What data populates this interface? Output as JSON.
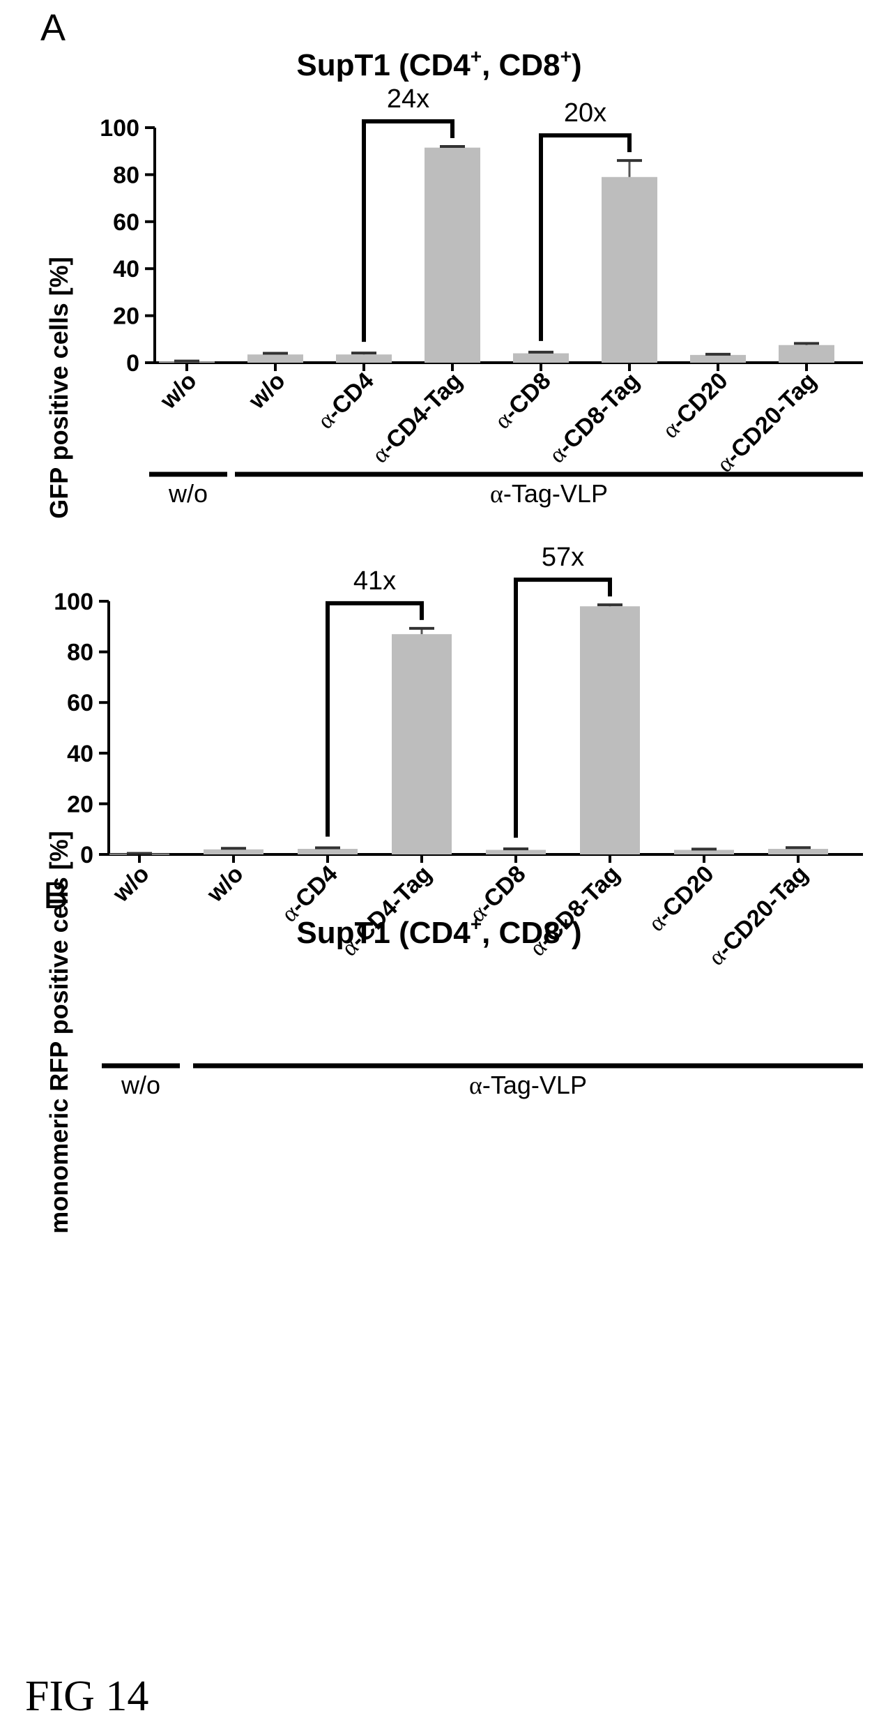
{
  "figure_label": "FIG 14",
  "chart_data": [
    {
      "type": "bar",
      "panel_label": "A",
      "title": "SupT1 (CD4",
      "title_sup1": "+",
      "title_mid": ", CD8",
      "title_sup2": "+",
      "title_end": ")",
      "ylabel": "GFP positive cells [%]",
      "xlabel": "",
      "ylim": [
        0,
        100
      ],
      "yticks": [
        0,
        20,
        40,
        60,
        80,
        100
      ],
      "categories": [
        "w/o",
        "w/o",
        "α-CD4",
        "α-CD4-Tag",
        "α-CD8",
        "α-CD8-Tag",
        "α-CD20",
        "α-CD20-Tag"
      ],
      "values": [
        0.5,
        3.5,
        3.5,
        91.5,
        4,
        79,
        3.3,
        7.5
      ],
      "errors": [
        0.2,
        0.5,
        0.6,
        0.5,
        0.5,
        7,
        0.3,
        0.7
      ],
      "bar_color": "#bdbdbd",
      "brackets": [
        {
          "from": 2,
          "to": 3,
          "label": "24x"
        },
        {
          "from": 4,
          "to": 5,
          "label": "20x"
        }
      ],
      "groups": [
        {
          "label": "w/o",
          "start": 0,
          "end": 0
        },
        {
          "label": "α-Tag-VLP",
          "start": 1,
          "end": 7
        }
      ]
    },
    {
      "type": "bar",
      "panel_label": "B",
      "title": "SupT1 (CD4",
      "title_sup1": "+",
      "title_mid": ", CD8",
      "title_sup2": "+",
      "title_end": ")",
      "ylabel": "monomeric RFP positive cells [%]",
      "xlabel": "",
      "ylim": [
        0,
        100
      ],
      "yticks": [
        0,
        20,
        40,
        60,
        80,
        100
      ],
      "categories": [
        "w/o",
        "w/o",
        "α-CD4",
        "α-CD4-Tag",
        "α-CD8",
        "α-CD8-Tag",
        "α-CD20",
        "α-CD20-Tag"
      ],
      "values": [
        0.3,
        2,
        2.2,
        87,
        1.8,
        98,
        1.8,
        2.2
      ],
      "errors": [
        0.1,
        0.4,
        0.4,
        2.3,
        0.4,
        0.6,
        0.3,
        0.5
      ],
      "bar_color": "#bdbdbd",
      "brackets": [
        {
          "from": 2,
          "to": 3,
          "label": "41x"
        },
        {
          "from": 4,
          "to": 5,
          "label": "57x"
        }
      ],
      "groups": [
        {
          "label": "w/o",
          "start": 0,
          "end": 0
        },
        {
          "label": "α-Tag-VLP",
          "start": 1,
          "end": 7
        }
      ]
    }
  ]
}
